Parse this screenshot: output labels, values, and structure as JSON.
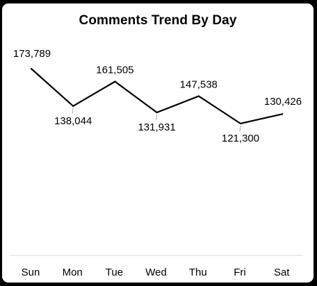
{
  "chart_data": {
    "type": "line",
    "title": "Comments Trend By Day",
    "categories": [
      "Sun",
      "Mon",
      "Tue",
      "Wed",
      "Thu",
      "Fri",
      "Sat"
    ],
    "values": [
      173789,
      138044,
      161505,
      131931,
      147538,
      121300,
      130426
    ],
    "labels": [
      "173,789",
      "138,044",
      "161,505",
      "131,931",
      "147,538",
      "121,300",
      "130,426"
    ],
    "grid": false,
    "legend": "none",
    "colors": {
      "line": "#000000",
      "background": "#ffffff",
      "frame": "#000000",
      "axis": "#d9d9d9",
      "leader": "#a6a6a6"
    }
  }
}
